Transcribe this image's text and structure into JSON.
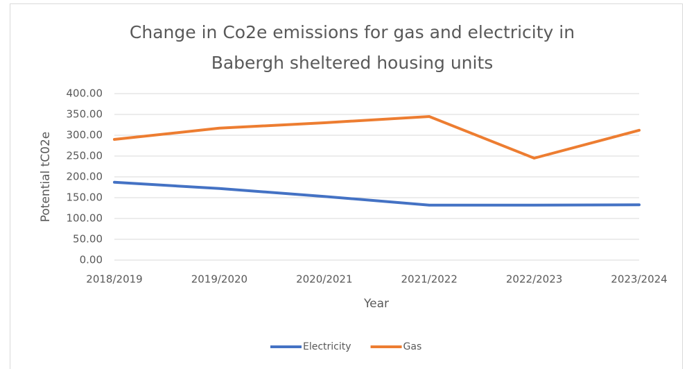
{
  "chart_data": {
    "type": "line",
    "title": [
      "Change in Co2e emissions for gas and electricity in",
      "Babergh sheltered housing units"
    ],
    "x_label": "Year",
    "y_label": "Potential tC02e",
    "categories": [
      "2018/2019",
      "2019/2020",
      "2020/2021",
      "2021/2022",
      "2022/2023",
      "2023/2024"
    ],
    "series": [
      {
        "name": "Electricity",
        "color": "#4472c4",
        "values": [
          187,
          172,
          153,
          132,
          132,
          133
        ]
      },
      {
        "name": "Gas",
        "color": "#ed7d31",
        "values": [
          290,
          317,
          330,
          345,
          245,
          312
        ]
      }
    ],
    "ylim": [
      0,
      400
    ],
    "yticks": [
      {
        "value": 0,
        "label": "0.00"
      },
      {
        "value": 50,
        "label": "50.00"
      },
      {
        "value": 100,
        "label": "100.00"
      },
      {
        "value": 150,
        "label": "150.00"
      },
      {
        "value": 200,
        "label": "200.00"
      },
      {
        "value": 250,
        "label": "250.00"
      },
      {
        "value": 300,
        "label": "300.00"
      },
      {
        "value": 350,
        "label": "350.00"
      },
      {
        "value": 400,
        "label": "400.00"
      }
    ],
    "grid": true,
    "legend": "bottom"
  }
}
